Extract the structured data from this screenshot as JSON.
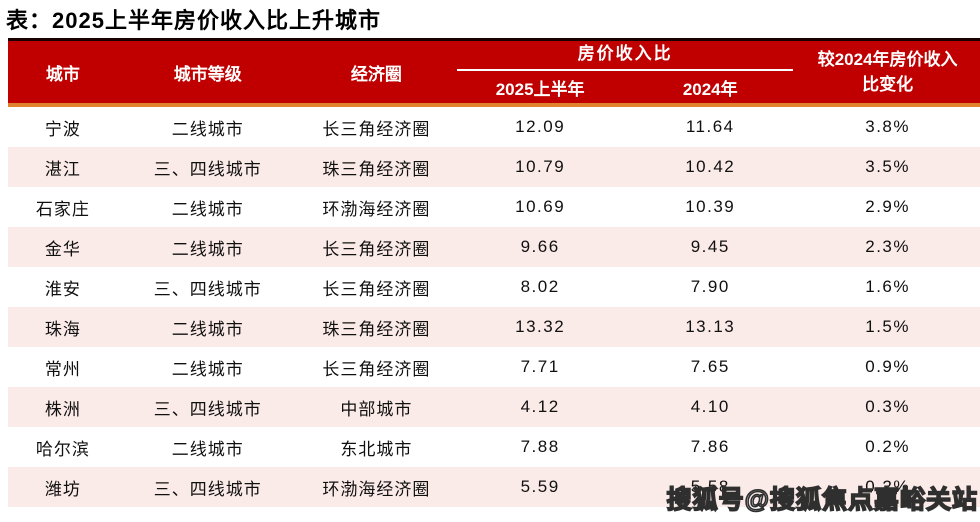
{
  "title": "表：2025上半年房价收入比上升城市",
  "header": {
    "city": "城市",
    "tier": "城市等级",
    "circle": "经济圈",
    "ratio_group": "房价收入比",
    "sub_2025": "2025上半年",
    "sub_2024": "2024年",
    "change_line1": "较2024年房价收入",
    "change_line2": "比变化"
  },
  "chart_data": {
    "type": "table",
    "title": "2025上半年房价收入比上升城市",
    "columns": [
      "城市",
      "城市等级",
      "经济圈",
      "房价收入比 2025上半年",
      "房价收入比 2024年",
      "较2024年房价收入比变化"
    ],
    "rows": [
      [
        "宁波",
        "二线城市",
        "长三角经济圈",
        "12.09",
        "11.64",
        "3.8%"
      ],
      [
        "湛江",
        "三、四线城市",
        "珠三角经济圈",
        "10.79",
        "10.42",
        "3.5%"
      ],
      [
        "石家庄",
        "二线城市",
        "环渤海经济圈",
        "10.69",
        "10.39",
        "2.9%"
      ],
      [
        "金华",
        "二线城市",
        "长三角经济圈",
        "9.66",
        "9.45",
        "2.3%"
      ],
      [
        "淮安",
        "三、四线城市",
        "长三角经济圈",
        "8.02",
        "7.90",
        "1.6%"
      ],
      [
        "珠海",
        "二线城市",
        "珠三角经济圈",
        "13.32",
        "13.13",
        "1.5%"
      ],
      [
        "常州",
        "二线城市",
        "长三角经济圈",
        "7.71",
        "7.65",
        "0.9%"
      ],
      [
        "株洲",
        "三、四线城市",
        "中部城市",
        "4.12",
        "4.10",
        "0.3%"
      ],
      [
        "哈尔滨",
        "二线城市",
        "东北城市",
        "7.88",
        "7.86",
        "0.2%"
      ],
      [
        "潍坊",
        "三、四线城市",
        "环渤海经济圈",
        "5.59",
        "5.58",
        "0.2%"
      ]
    ]
  },
  "watermark": "搜狐号@搜狐焦点嘉峪关站",
  "colors": {
    "header_bg": "#C00000",
    "header_top_border": "#1A0000",
    "accent_line": "#E0832F",
    "row_alt_bg": "#FBEBE8",
    "header_text": "#FFFFFF",
    "body_text": "#101010"
  }
}
